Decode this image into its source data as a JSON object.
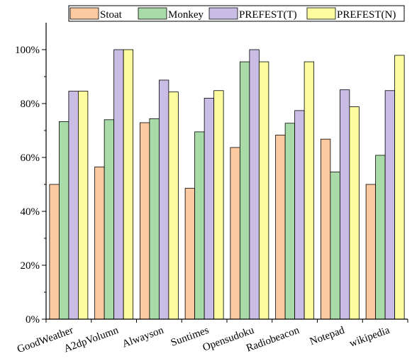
{
  "chart_data": {
    "type": "bar",
    "title": "",
    "xlabel": "",
    "ylabel": "",
    "ylim": [
      0,
      110
    ],
    "yticks": [
      0,
      20,
      40,
      60,
      80,
      100
    ],
    "ytick_labels": [
      "0%",
      "20%",
      "40%",
      "60%",
      "80%",
      "100%"
    ],
    "grid": false,
    "legend_position": "top",
    "categories": [
      "GoodWeather",
      "A2dpVolumn",
      "Alwayson",
      "Suntimes",
      "Opensudoku",
      "Radiobeacon",
      "Notepad",
      "wikipedia"
    ],
    "series": [
      {
        "name": "Stoat",
        "color": "#fcc9a0",
        "values": [
          50.0,
          56.5,
          72.9,
          48.6,
          63.7,
          68.3,
          66.8,
          50.0
        ]
      },
      {
        "name": "Monkey",
        "color": "#a8dba8",
        "values": [
          73.3,
          74.0,
          74.4,
          69.5,
          95.5,
          72.7,
          54.6,
          60.8
        ]
      },
      {
        "name": "PREFEST(T)",
        "color": "#c9bde6",
        "values": [
          84.6,
          100.0,
          88.7,
          82.0,
          100.0,
          77.4,
          85.1,
          84.8
        ]
      },
      {
        "name": "PREFEST(N)",
        "color": "#fdfd9f",
        "values": [
          84.6,
          100.0,
          84.3,
          84.8,
          95.5,
          95.5,
          78.8,
          97.9
        ]
      }
    ]
  }
}
